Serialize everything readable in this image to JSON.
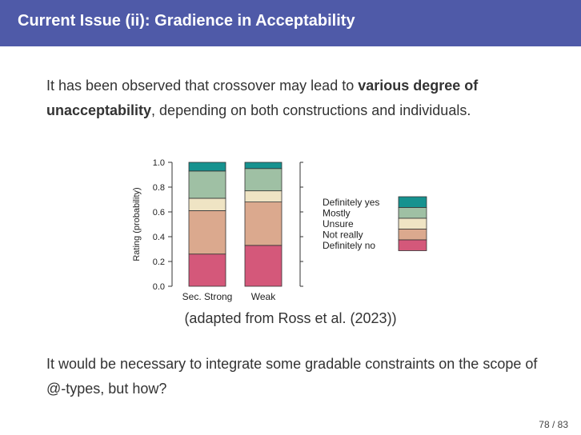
{
  "header": {
    "title": "Current Issue (ii): Gradience in Acceptability"
  },
  "body": {
    "p1_before": "It has been observed that crossover may lead to ",
    "p1_bold": "various degree of unacceptability",
    "p1_after": ", depending on both constructions and individuals.",
    "caption": "(adapted from Ross et al. (2023))",
    "p2": "It would be necessary to integrate some gradable constraints on the scope of @-types, but how?"
  },
  "footer": {
    "page": "78 / 83"
  },
  "chart_data": {
    "type": "bar",
    "stacked": true,
    "categories": [
      "Sec. Strong",
      "Weak"
    ],
    "ylabel": "Rating (probability)",
    "ylim": [
      0,
      1
    ],
    "yticks": [
      "0.0",
      "0.2",
      "0.4",
      "0.6",
      "0.8",
      "1.0"
    ],
    "legend_position": "right",
    "series": [
      {
        "name": "Definitely no",
        "color": "#d4587a",
        "values": [
          0.26,
          0.33
        ]
      },
      {
        "name": "Not really",
        "color": "#dba98e",
        "values": [
          0.35,
          0.35
        ]
      },
      {
        "name": "Unsure",
        "color": "#efe4c4",
        "values": [
          0.1,
          0.09
        ]
      },
      {
        "name": "Mostly",
        "color": "#9fc0a4",
        "values": [
          0.22,
          0.18
        ]
      },
      {
        "name": "Definitely yes",
        "color": "#16928f",
        "values": [
          0.07,
          0.05
        ]
      }
    ]
  }
}
